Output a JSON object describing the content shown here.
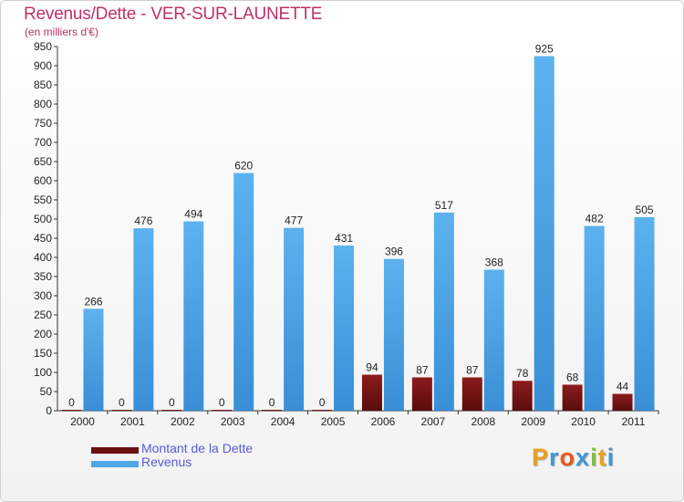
{
  "header": {
    "title": "Revenus/Dette - VER-SUR-LAUNETTE",
    "subtitle": "(en milliers d'€)"
  },
  "colors": {
    "dette": "#7a1414",
    "revenus": "#4ea6e6",
    "title": "#c0306a"
  },
  "legend": {
    "items": [
      {
        "label": "Montant de la Dette",
        "color": "#6b0f0f"
      },
      {
        "label": "Revenus",
        "color": "#4ea6e6"
      }
    ]
  },
  "logo": {
    "text": "Proxiti"
  },
  "chart_data": {
    "type": "bar",
    "title": "Revenus/Dette - VER-SUR-LAUNETTE",
    "subtitle": "(en milliers d'€)",
    "categories": [
      "2000",
      "2001",
      "2002",
      "2003",
      "2004",
      "2005",
      "2006",
      "2007",
      "2008",
      "2009",
      "2010",
      "2011"
    ],
    "series": [
      {
        "name": "Montant de la Dette",
        "values": [
          0,
          0,
          0,
          0,
          0,
          0,
          94,
          87,
          87,
          78,
          68,
          44
        ]
      },
      {
        "name": "Revenus",
        "values": [
          266,
          476,
          494,
          620,
          477,
          431,
          396,
          517,
          368,
          925,
          482,
          505
        ]
      }
    ],
    "ylim": [
      0,
      950
    ],
    "ytick_step": 50,
    "grid": false,
    "legend_position": "bottom-left"
  }
}
